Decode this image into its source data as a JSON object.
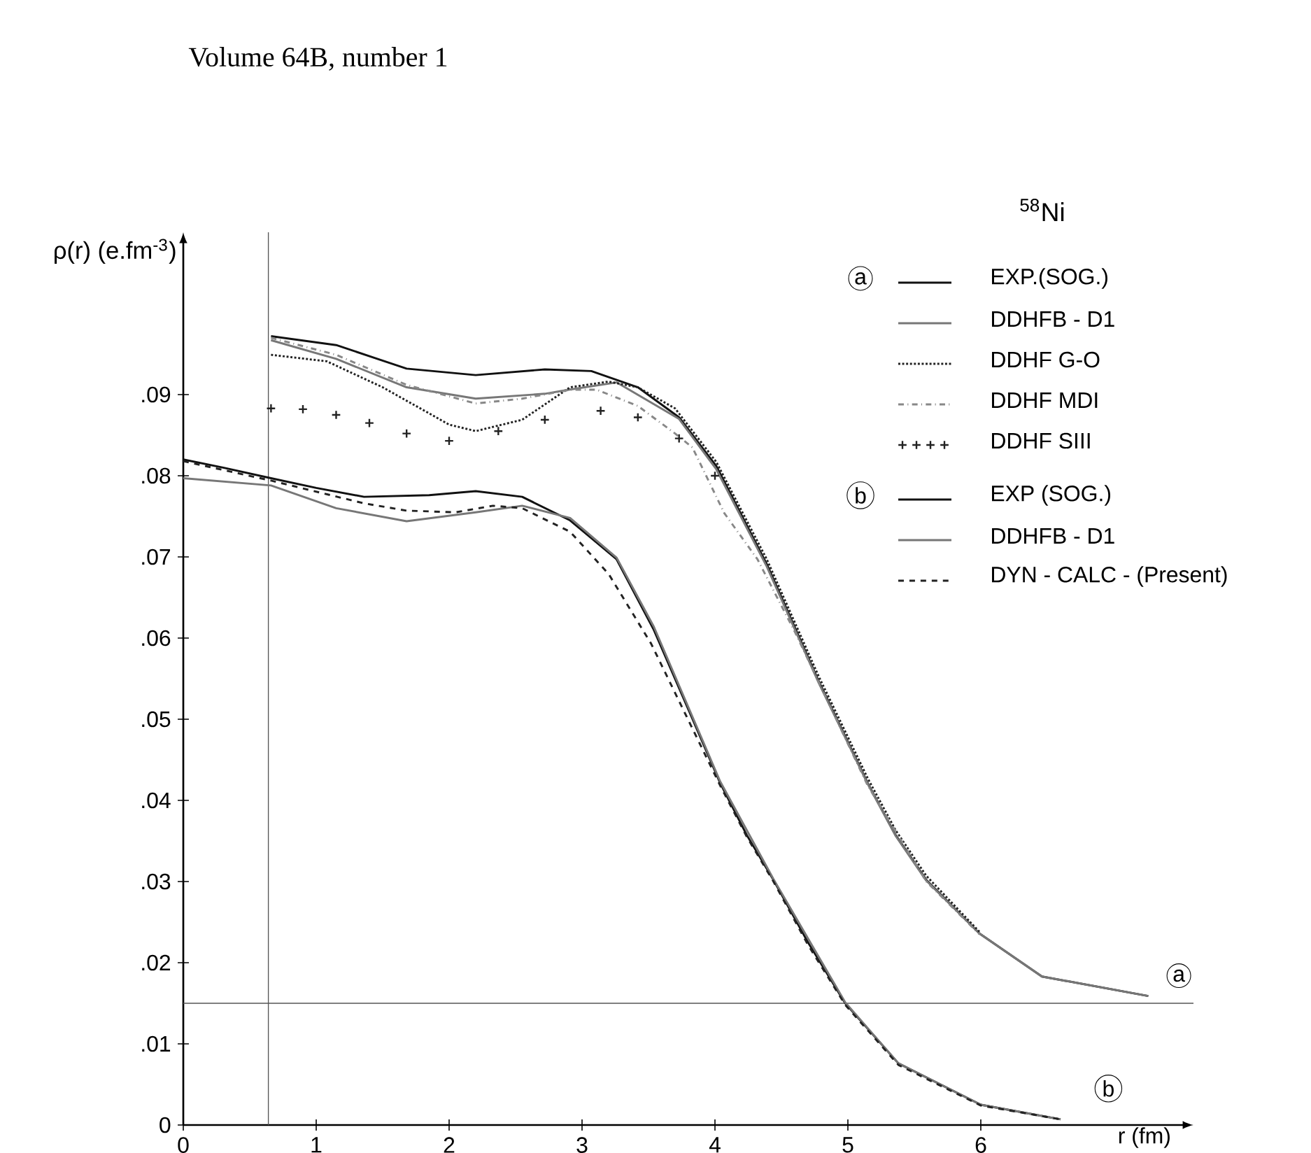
{
  "chart_data": {
    "type": "line",
    "title": "$^{58}$Ni",
    "xlabel": "r (fm)",
    "ylabel": "ρ(r) (e.fm$^{-3}$)",
    "xlim": [
      0,
      7.6
    ],
    "ylim": [
      0,
      0.11
    ],
    "xticks": [
      0,
      1,
      2,
      3,
      4,
      5,
      6
    ],
    "yticks": [
      0,
      {
        "value": 0.01,
        "label": ".01"
      },
      {
        "value": 0.02,
        "label": ".02"
      },
      {
        "value": 0.03,
        "label": ".03"
      },
      {
        "value": 0.04,
        "label": ".04"
      },
      {
        "value": 0.05,
        "label": ".05"
      },
      {
        "value": 0.06,
        "label": ".06"
      },
      {
        "value": 0.07,
        "label": ".07"
      },
      {
        "value": 0.08,
        "label": ".08"
      },
      {
        "value": 0.09,
        "label": ".09"
      }
    ],
    "legend": "top right",
    "ref_lines": [
      {
        "axis": "x",
        "value": 0.64,
        "color": "#555555"
      },
      {
        "axis": "y",
        "value": 0.015,
        "color": "#555555"
      }
    ],
    "annotations": [
      "Volume 64B, number 1",
      "a",
      "b",
      {
        "text": "a",
        "x": 7.49,
        "y": 0.0184
      },
      {
        "text": "b",
        "x": 6.96,
        "y": 0.0045
      }
    ],
    "series": [
      {
        "name": "EXP.(SOG.)",
        "color": "#111111",
        "x": [
          0.66,
          1.15,
          1.68,
          2.2,
          2.72,
          3.07,
          3.42,
          3.73,
          4.01,
          4.39,
          4.78,
          5.15,
          5.36,
          5.59,
          5.99,
          6.46,
          7.26
        ],
        "values": [
          0.0972,
          0.0961,
          0.0932,
          0.0924,
          0.0931,
          0.0929,
          0.0909,
          0.0872,
          0.0812,
          0.0691,
          0.0547,
          0.0421,
          0.0357,
          0.0302,
          0.0236,
          0.0183,
          0.0159
        ]
      },
      {
        "name": "DDHFB - D1",
        "color": "#777777",
        "x": [
          0.66,
          1.15,
          1.68,
          2.2,
          2.72,
          2.9,
          3.26,
          3.73,
          4.01,
          4.39,
          4.78,
          5.15,
          5.36,
          5.59,
          5.99,
          6.46,
          7.26
        ],
        "values": [
          0.0967,
          0.0944,
          0.0909,
          0.0895,
          0.0901,
          0.0906,
          0.0915,
          0.087,
          0.0808,
          0.0688,
          0.0545,
          0.042,
          0.0356,
          0.0301,
          0.0236,
          0.0183,
          0.0159
        ]
      },
      {
        "name": "DDHF G-O",
        "color": "#222222",
        "line_style": "dotted",
        "x": [
          0.66,
          1.08,
          1.5,
          2.0,
          2.2,
          2.55,
          2.91,
          3.2,
          3.42,
          3.7,
          4.01,
          4.39,
          4.78,
          5.15,
          5.36,
          5.59,
          5.99
        ],
        "values": [
          0.0949,
          0.0941,
          0.0909,
          0.0863,
          0.0855,
          0.0869,
          0.0909,
          0.0916,
          0.0909,
          0.0883,
          0.0817,
          0.0697,
          0.0553,
          0.0427,
          0.0363,
          0.0307,
          0.0238
        ]
      },
      {
        "name": "DDHF MDI",
        "color": "#888888",
        "line_style": "dashdot",
        "x": [
          0.66,
          1.15,
          1.68,
          2.2,
          2.55,
          2.91,
          3.11,
          3.42,
          3.7,
          3.83,
          4.07,
          4.32,
          4.6,
          5.15,
          5.59,
          5.99
        ],
        "values": [
          0.097,
          0.0949,
          0.0912,
          0.0889,
          0.0895,
          0.0906,
          0.0906,
          0.0886,
          0.0852,
          0.0835,
          0.0754,
          0.0697,
          0.0608,
          0.0418,
          0.03,
          0.0235
        ]
      },
      {
        "name": "DDHF SIII",
        "color": "#222222",
        "type": "scatter",
        "marker": "cross",
        "x": [
          0.66,
          0.9,
          1.15,
          1.4,
          1.68,
          2.0,
          2.37,
          2.72,
          3.14,
          3.42,
          3.73,
          4.0
        ],
        "values": [
          0.0883,
          0.0882,
          0.0875,
          0.0865,
          0.0852,
          0.0843,
          0.0855,
          0.0869,
          0.088,
          0.0872,
          0.0846,
          0.08
        ]
      },
      {
        "name": "EXP (SOG.)",
        "color": "#111111",
        "x": [
          0,
          0.3,
          0.66,
          1.0,
          1.36,
          1.85,
          2.2,
          2.55,
          2.91,
          3.26,
          3.54,
          3.8,
          4.04,
          4.24,
          4.44,
          4.7,
          4.98,
          5.38,
          6.0,
          6.6
        ],
        "values": [
          0.082,
          0.081,
          0.0797,
          0.0785,
          0.0774,
          0.0776,
          0.0781,
          0.0774,
          0.0745,
          0.0697,
          0.061,
          0.0512,
          0.0421,
          0.0357,
          0.0302,
          0.0225,
          0.015,
          0.0076,
          0.0025,
          0.0007
        ]
      },
      {
        "name": "DDHFB - D1",
        "color": "#777777",
        "x": [
          0,
          0.66,
          1.15,
          1.68,
          2.2,
          2.55,
          2.91,
          3.26,
          3.54,
          4.04,
          4.44,
          4.98,
          5.38,
          6.0,
          6.6
        ],
        "values": [
          0.0797,
          0.0788,
          0.076,
          0.0744,
          0.0755,
          0.0763,
          0.0748,
          0.0699,
          0.0614,
          0.0423,
          0.0303,
          0.0151,
          0.0076,
          0.0025,
          0.0007
        ]
      },
      {
        "name": "DYN - CALC - (Present)",
        "color": "#222222",
        "line_style": "dashed",
        "x": [
          0,
          0.66,
          1.36,
          1.68,
          2.05,
          2.33,
          2.55,
          2.91,
          3.2,
          3.52,
          4.04,
          4.24,
          4.44,
          4.7,
          4.98,
          5.38,
          6.0,
          6.6
        ],
        "values": [
          0.0818,
          0.0794,
          0.0766,
          0.0757,
          0.0755,
          0.0763,
          0.076,
          0.0731,
          0.0679,
          0.0593,
          0.0418,
          0.0355,
          0.03,
          0.0222,
          0.0148,
          0.0074,
          0.0024,
          0.0007
        ]
      }
    ]
  }
}
